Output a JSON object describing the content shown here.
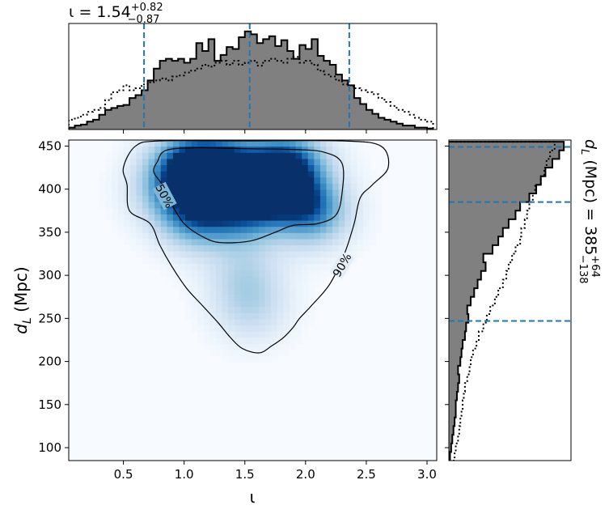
{
  "chart_data": [
    {
      "type": "heatmap",
      "xlabel": "ι",
      "ylabel_symbol": "d",
      "ylabel_sub": "L",
      "ylabel_unit": " (Mpc)",
      "xlim": [
        0.05,
        3.08
      ],
      "ylim": [
        85,
        457
      ],
      "xticks": [
        0.5,
        1.0,
        1.5,
        2.0,
        2.5,
        3.0
      ],
      "xtick_labels": [
        "0.5",
        "1.0",
        "1.5",
        "2.0",
        "2.5",
        "3.0"
      ],
      "yticks": [
        100,
        150,
        200,
        250,
        300,
        350,
        400,
        450
      ],
      "ytick_labels": [
        "100",
        "150",
        "200",
        "250",
        "300",
        "350",
        "400",
        "450"
      ],
      "colormap": "Blues",
      "density_peaks": [
        {
          "x": 1.05,
          "y": 428,
          "w": 0.95
        },
        {
          "x": 1.75,
          "y": 410,
          "w": 1.0
        },
        {
          "x": 1.35,
          "y": 425,
          "w": 0.85
        },
        {
          "x": 1.1,
          "y": 370,
          "w": 0.75
        },
        {
          "x": 1.5,
          "y": 375,
          "w": 0.7
        },
        {
          "x": 2.05,
          "y": 375,
          "w": 0.8
        },
        {
          "x": 1.5,
          "y": 300,
          "w": 0.3
        },
        {
          "x": 1.55,
          "y": 260,
          "w": 0.28
        },
        {
          "x": 1.9,
          "y": 435,
          "w": 0.55
        },
        {
          "x": 0.85,
          "y": 400,
          "w": 0.4
        }
      ],
      "contours": [
        {
          "label": "50%",
          "label_x": 0.84,
          "label_y": 392,
          "label_angle": 62,
          "points": [
            [
              0.78,
              432
            ],
            [
              0.85,
              445
            ],
            [
              1.1,
              448
            ],
            [
              1.5,
              447
            ],
            [
              1.9,
              446
            ],
            [
              2.15,
              443
            ],
            [
              2.3,
              430
            ],
            [
              2.3,
              395
            ],
            [
              2.25,
              370
            ],
            [
              2.1,
              360
            ],
            [
              1.9,
              358
            ],
            [
              1.75,
              350
            ],
            [
              1.55,
              340
            ],
            [
              1.3,
              338
            ],
            [
              1.15,
              345
            ],
            [
              1.0,
              360
            ],
            [
              0.9,
              382
            ],
            [
              0.82,
              405
            ],
            [
              0.75,
              420
            ]
          ]
        },
        {
          "label": "90%",
          "label_x": 2.3,
          "label_y": 312,
          "label_angle": -60,
          "points": [
            [
              0.5,
              425
            ],
            [
              0.6,
              450
            ],
            [
              0.8,
              456
            ],
            [
              1.5,
              456
            ],
            [
              2.3,
              456
            ],
            [
              2.62,
              450
            ],
            [
              2.68,
              425
            ],
            [
              2.55,
              405
            ],
            [
              2.45,
              390
            ],
            [
              2.4,
              360
            ],
            [
              2.32,
              325
            ],
            [
              2.2,
              290
            ],
            [
              2.05,
              265
            ],
            [
              1.95,
              250
            ],
            [
              1.9,
              240
            ],
            [
              1.82,
              228
            ],
            [
              1.72,
              218
            ],
            [
              1.62,
              210
            ],
            [
              1.48,
              215
            ],
            [
              1.38,
              228
            ],
            [
              1.28,
              245
            ],
            [
              1.15,
              265
            ],
            [
              1.02,
              285
            ],
            [
              0.9,
              310
            ],
            [
              0.8,
              335
            ],
            [
              0.72,
              360
            ],
            [
              0.55,
              375
            ],
            [
              0.53,
              405
            ]
          ]
        }
      ]
    },
    {
      "type": "histogram",
      "orientation": "vertical",
      "variable": "ι",
      "xlim": [
        0.05,
        3.08
      ],
      "bins": [
        0.05,
        0.1,
        0.15,
        0.2,
        0.25,
        0.3,
        0.35,
        0.4,
        0.45,
        0.5,
        0.55,
        0.6,
        0.65,
        0.7,
        0.75,
        0.8,
        0.85,
        0.9,
        0.95,
        1.0,
        1.05,
        1.1,
        1.15,
        1.2,
        1.25,
        1.3,
        1.35,
        1.4,
        1.45,
        1.5,
        1.55,
        1.6,
        1.65,
        1.7,
        1.75,
        1.8,
        1.85,
        1.9,
        1.95,
        2.0,
        2.05,
        2.1,
        2.15,
        2.2,
        2.25,
        2.3,
        2.35,
        2.4,
        2.45,
        2.5,
        2.55,
        2.6,
        2.65,
        2.7,
        2.75,
        2.8,
        2.85,
        2.9,
        2.95,
        3.0,
        3.05
      ],
      "counts": [
        0.02,
        0.04,
        0.05,
        0.08,
        0.1,
        0.15,
        0.2,
        0.22,
        0.24,
        0.25,
        0.32,
        0.35,
        0.4,
        0.5,
        0.62,
        0.7,
        0.72,
        0.7,
        0.72,
        0.68,
        0.72,
        0.88,
        0.8,
        0.92,
        0.7,
        0.76,
        0.84,
        0.82,
        0.94,
        1.0,
        0.97,
        0.88,
        0.92,
        0.95,
        0.85,
        0.91,
        0.8,
        0.72,
        0.86,
        0.82,
        0.92,
        0.75,
        0.7,
        0.66,
        0.56,
        0.5,
        0.45,
        0.32,
        0.26,
        0.2,
        0.16,
        0.12,
        0.1,
        0.08,
        0.06,
        0.04,
        0.04,
        0.02,
        0.02,
        0.01
      ],
      "prior_counts": [
        0.1,
        0.12,
        0.15,
        0.18,
        0.2,
        0.22,
        0.3,
        0.38,
        0.4,
        0.45,
        0.4,
        0.42,
        0.46,
        0.48,
        0.5,
        0.52,
        0.5,
        0.54,
        0.55,
        0.58,
        0.6,
        0.62,
        0.66,
        0.64,
        0.68,
        0.7,
        0.66,
        0.7,
        0.66,
        0.68,
        0.7,
        0.65,
        0.7,
        0.72,
        0.7,
        0.68,
        0.72,
        0.74,
        0.68,
        0.7,
        0.66,
        0.6,
        0.56,
        0.54,
        0.5,
        0.46,
        0.44,
        0.42,
        0.4,
        0.38,
        0.36,
        0.32,
        0.28,
        0.24,
        0.2,
        0.18,
        0.15,
        0.12,
        0.1,
        0.08
      ],
      "median": 1.54,
      "lower": 0.67,
      "upper": 2.36,
      "max_count": 1.0
    },
    {
      "type": "histogram",
      "orientation": "horizontal",
      "variable": "d_L",
      "ylim": [
        85,
        457
      ],
      "bins": [
        85,
        95,
        105,
        115,
        125,
        135,
        145,
        155,
        165,
        175,
        185,
        195,
        205,
        215,
        225,
        235,
        245,
        255,
        265,
        275,
        285,
        295,
        305,
        315,
        325,
        335,
        345,
        355,
        365,
        375,
        385,
        395,
        405,
        415,
        425,
        435,
        445,
        455
      ],
      "counts": [
        0.01,
        0.02,
        0.03,
        0.04,
        0.05,
        0.06,
        0.06,
        0.07,
        0.08,
        0.09,
        0.08,
        0.1,
        0.11,
        0.12,
        0.14,
        0.15,
        0.17,
        0.16,
        0.19,
        0.22,
        0.25,
        0.28,
        0.32,
        0.3,
        0.38,
        0.43,
        0.47,
        0.52,
        0.58,
        0.62,
        0.7,
        0.76,
        0.8,
        0.84,
        0.9,
        0.96,
        1.0
      ],
      "prior_counts": [
        0.05,
        0.06,
        0.08,
        0.09,
        0.1,
        0.11,
        0.12,
        0.13,
        0.14,
        0.16,
        0.18,
        0.19,
        0.21,
        0.24,
        0.26,
        0.3,
        0.33,
        0.36,
        0.4,
        0.43,
        0.47,
        0.5,
        0.52,
        0.55,
        0.58,
        0.62,
        0.63,
        0.66,
        0.68,
        0.7,
        0.73,
        0.75,
        0.8,
        0.83,
        0.85,
        0.88,
        0.92
      ],
      "median": 385,
      "lower": 247,
      "upper": 449,
      "max_count": 1.0
    }
  ],
  "title": {
    "top_symbol": "ι",
    "top_value": " = 1.54",
    "top_sup": "+0.82",
    "top_sub": "−0.87",
    "right_symbol": "d",
    "right_sub_L": "L",
    "right_value": " (Mpc) = 385",
    "right_sup": "+64",
    "right_sub": "−138"
  },
  "colors": {
    "hist_fill": "#808080",
    "quantile_line": "#1f77b4",
    "contour": "#000000",
    "colormap_low": "#f7fbff",
    "colormap_high": "#08306b"
  }
}
